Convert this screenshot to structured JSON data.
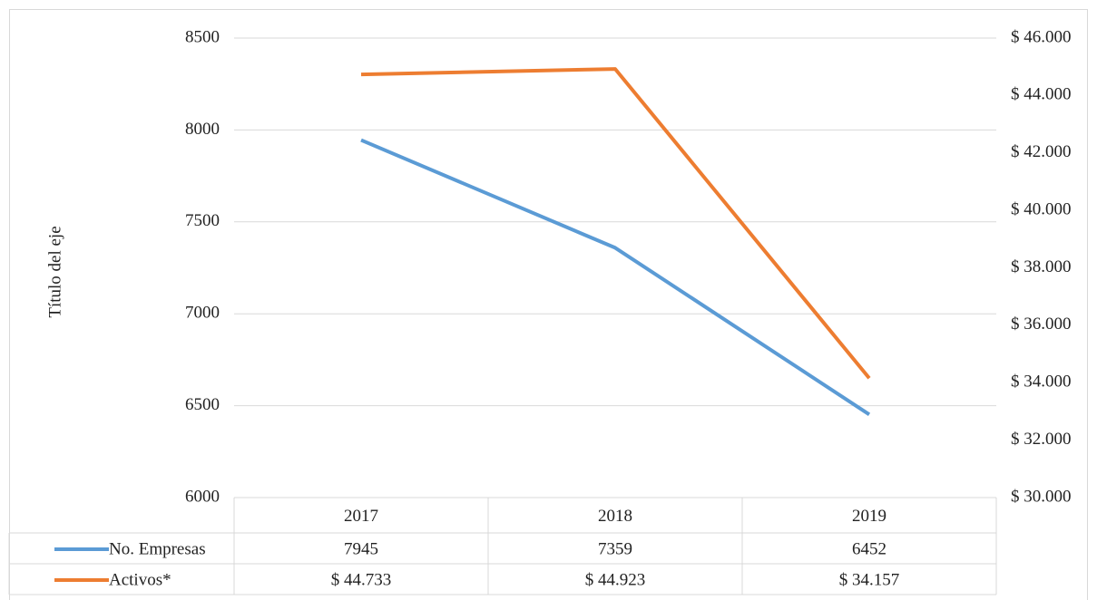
{
  "chart_data": {
    "type": "line",
    "ylabel": "Título del eje",
    "categories": [
      "2017",
      "2018",
      "2019"
    ],
    "series": [
      {
        "name": "No. Empresas",
        "color": "#5b9bd5",
        "values": [
          7945,
          7359,
          6452
        ]
      },
      {
        "name": "Activos*",
        "color": "#ed7d31",
        "axis": "y2",
        "values": [
          44733,
          44923,
          34157
        ],
        "value_labels": [
          "$ 44.733",
          "$ 44.923",
          "$ 34.157"
        ]
      }
    ],
    "ylim": [
      6000,
      8500
    ],
    "yticks": [
      6000,
      6500,
      7000,
      7500,
      8000,
      8500
    ],
    "y2lim": [
      30000,
      46000
    ],
    "y2ticks": [
      {
        "value": 30000,
        "label": "$ 30.000"
      },
      {
        "value": 32000,
        "label": "$ 32.000"
      },
      {
        "value": 34000,
        "label": "$ 34.000"
      },
      {
        "value": 36000,
        "label": "$ 36.000"
      },
      {
        "value": 38000,
        "label": "$ 38.000"
      },
      {
        "value": 40000,
        "label": "$ 40.000"
      },
      {
        "value": 42000,
        "label": "$ 42.000"
      },
      {
        "value": 44000,
        "label": "$ 44.000"
      },
      {
        "value": 46000,
        "label": "$ 46.000"
      }
    ],
    "grid": true
  }
}
